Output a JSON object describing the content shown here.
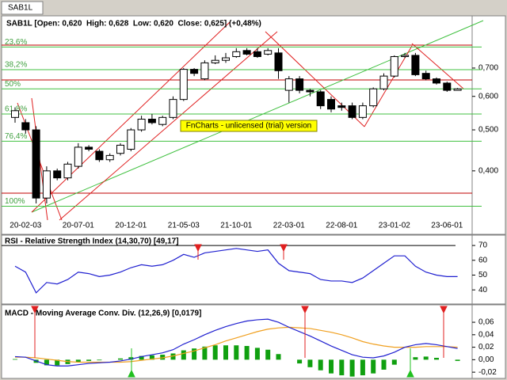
{
  "tab": "SAB1L",
  "watermark": "FnCharts - unlicensed (trial) version",
  "chart_data": [
    {
      "type": "candlestick",
      "title": "SAB1L [Open: 0,620  High: 0,628  Low: 0,620  Close: 0,625] (+0,48%)",
      "categories": [
        null,
        "20-02-03",
        null,
        null,
        null,
        null,
        "20-07-01",
        null,
        null,
        null,
        null,
        "20-12-01",
        null,
        null,
        null,
        null,
        "21-05-03",
        null,
        null,
        null,
        null,
        "21-10-01",
        null,
        null,
        null,
        null,
        "22-03-01",
        null,
        null,
        null,
        null,
        "22-08-01",
        null,
        null,
        null,
        null,
        "23-01-02",
        null,
        null,
        null,
        null,
        "23-06-01",
        null
      ],
      "open": [
        0.535,
        0.52,
        0.5,
        0.345,
        0.4,
        0.385,
        0.41,
        0.455,
        0.445,
        0.425,
        0.44,
        0.45,
        0.5,
        0.53,
        0.515,
        0.535,
        0.59,
        0.695,
        0.66,
        0.72,
        0.73,
        0.745,
        0.77,
        0.765,
        0.755,
        0.76,
        0.62,
        0.66,
        0.62,
        0.615,
        0.59,
        0.57,
        0.57,
        0.535,
        0.57,
        0.625,
        0.67,
        0.745,
        0.75,
        0.68,
        0.66,
        0.645,
        0.62
      ],
      "high": [
        0.565,
        0.53,
        0.51,
        0.41,
        0.405,
        0.42,
        0.465,
        0.46,
        0.45,
        0.44,
        0.465,
        0.505,
        0.54,
        0.545,
        0.54,
        0.6,
        0.7,
        0.7,
        0.73,
        0.75,
        0.76,
        0.78,
        0.78,
        0.78,
        0.78,
        0.78,
        0.67,
        0.67,
        0.625,
        0.62,
        0.6,
        0.58,
        0.58,
        0.58,
        0.63,
        0.68,
        0.75,
        0.76,
        0.76,
        0.69,
        0.665,
        0.65,
        0.628
      ],
      "low": [
        0.52,
        0.49,
        0.335,
        0.335,
        0.38,
        0.38,
        0.405,
        0.445,
        0.42,
        0.42,
        0.435,
        0.445,
        0.495,
        0.515,
        0.51,
        0.53,
        0.585,
        0.67,
        0.655,
        0.715,
        0.72,
        0.74,
        0.75,
        0.74,
        0.75,
        0.66,
        0.58,
        0.61,
        0.6,
        0.56,
        0.55,
        0.555,
        0.53,
        0.53,
        0.565,
        0.62,
        0.665,
        0.74,
        0.67,
        0.655,
        0.64,
        0.615,
        0.62
      ],
      "close": [
        0.555,
        0.5,
        0.345,
        0.4,
        0.385,
        0.415,
        0.455,
        0.45,
        0.425,
        0.435,
        0.46,
        0.5,
        0.53,
        0.52,
        0.535,
        0.59,
        0.695,
        0.68,
        0.72,
        0.73,
        0.74,
        0.765,
        0.755,
        0.745,
        0.77,
        0.69,
        0.66,
        0.62,
        0.615,
        0.57,
        0.56,
        0.565,
        0.535,
        0.57,
        0.625,
        0.67,
        0.745,
        0.75,
        0.675,
        0.66,
        0.645,
        0.62,
        0.625
      ],
      "ylim": [
        0.31,
        0.93
      ],
      "log_scale": true,
      "yticks": [
        {
          "value": 0.4,
          "label": "0,400"
        },
        {
          "value": 0.5,
          "label": "0,500"
        },
        {
          "value": 0.6,
          "label": "0,600"
        },
        {
          "value": 0.7,
          "label": "0,700"
        }
      ],
      "fib_levels": [
        {
          "value": 0.785,
          "label": "23,6%"
        },
        {
          "value": 0.694,
          "label": "38,2%"
        },
        {
          "value": 0.625,
          "label": "50%"
        },
        {
          "value": 0.545,
          "label": "61,8%"
        },
        {
          "value": 0.47,
          "label": "76,4%"
        },
        {
          "value": 0.33,
          "label": "100%"
        }
      ]
    },
    {
      "type": "line",
      "title": "RSI - Relative Strength Index (14,30,70) [49,17]",
      "series": [
        {
          "color": "#2020d0",
          "values": [
            56,
            52,
            38,
            45,
            44,
            47,
            52,
            51,
            49,
            50,
            52,
            55,
            57,
            56,
            57,
            60,
            64,
            62,
            65,
            66,
            67,
            68,
            67,
            66,
            67,
            58,
            53,
            52,
            51,
            47,
            46,
            46,
            45,
            48,
            53,
            58,
            63,
            63,
            56,
            52,
            50,
            49,
            49
          ]
        }
      ],
      "ylim": [
        31,
        77
      ],
      "yticks": [
        40,
        50,
        60,
        70
      ]
    },
    {
      "type": "macd",
      "title": "MACD - Moving Average Conv. Div. (12,26,9) [0,0179]",
      "series": [
        {
          "color": "#2020d0",
          "values": [
            0.005,
            0.004,
            -0.002,
            -0.008,
            -0.01,
            -0.01,
            -0.008,
            -0.006,
            -0.005,
            -0.004,
            -0.002,
            0.001,
            0.005,
            0.008,
            0.011,
            0.016,
            0.025,
            0.032,
            0.04,
            0.047,
            0.053,
            0.058,
            0.062,
            0.064,
            0.065,
            0.06,
            0.052,
            0.045,
            0.038,
            0.03,
            0.022,
            0.015,
            0.008,
            0.004,
            0.003,
            0.006,
            0.012,
            0.02,
            0.024,
            0.026,
            0.024,
            0.021,
            0.018
          ]
        },
        {
          "color": "#f0a020",
          "values": [
            0.004,
            0.004,
            0.003,
            0.001,
            -0.001,
            -0.003,
            -0.004,
            -0.004,
            -0.004,
            -0.004,
            -0.004,
            -0.003,
            -0.001,
            0.001,
            0.003,
            0.006,
            0.01,
            0.014,
            0.019,
            0.024,
            0.03,
            0.035,
            0.04,
            0.045,
            0.049,
            0.051,
            0.052,
            0.051,
            0.05,
            0.047,
            0.044,
            0.04,
            0.035,
            0.029,
            0.025,
            0.022,
            0.02,
            0.02,
            0.02,
            0.021,
            0.021,
            0.021,
            0.02
          ]
        },
        {
          "color": "#10a010",
          "values": [
            0.001,
            0,
            -0.005,
            -0.009,
            -0.009,
            -0.007,
            -0.004,
            -0.002,
            -0.001,
            0,
            0.002,
            0.004,
            0.006,
            0.007,
            0.008,
            0.01,
            0.015,
            0.018,
            0.021,
            0.023,
            0.023,
            0.023,
            0.022,
            0.019,
            0.016,
            0.009,
            0,
            -0.006,
            -0.012,
            -0.017,
            -0.022,
            -0.025,
            -0.027,
            -0.025,
            -0.022,
            -0.016,
            -0.008,
            0,
            0.004,
            0.005,
            0.003,
            0,
            -0.002
          ]
        }
      ],
      "ylim": [
        -0.03,
        0.088
      ],
      "yticks": [
        {
          "value": -0.02,
          "label": "-0,02"
        },
        {
          "value": 0,
          "label": "0,00"
        },
        {
          "value": 0.02,
          "label": "0,02"
        },
        {
          "value": 0.04,
          "label": "0,04"
        },
        {
          "value": 0.06,
          "label": "0,06"
        }
      ]
    }
  ]
}
